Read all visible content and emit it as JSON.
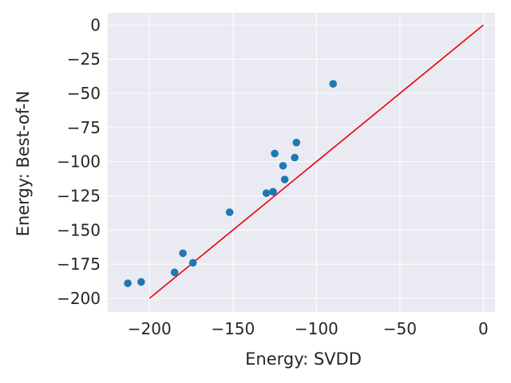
{
  "chart_data": {
    "type": "scatter",
    "title": "",
    "xlabel": "Energy: SVDD",
    "ylabel": "Energy: Best-of-N",
    "xlim": [
      -225,
      7
    ],
    "ylim": [
      -210,
      9
    ],
    "grid": true,
    "x_ticks": [
      -200,
      -150,
      -100,
      -50,
      0
    ],
    "x_tick_labels": [
      "−200",
      "−150",
      "−100",
      "−50",
      "0"
    ],
    "y_ticks": [
      0,
      -25,
      -50,
      -75,
      -100,
      -125,
      -150,
      -175,
      -200
    ],
    "y_tick_labels": [
      "0",
      "−25",
      "−50",
      "−75",
      "−100",
      "−125",
      "−150",
      "−175",
      "−200"
    ],
    "points": [
      {
        "x": -90,
        "y": -43
      },
      {
        "x": -112,
        "y": -86
      },
      {
        "x": -113,
        "y": -97
      },
      {
        "x": -125,
        "y": -94
      },
      {
        "x": -120,
        "y": -103
      },
      {
        "x": -119,
        "y": -113
      },
      {
        "x": -126,
        "y": -122
      },
      {
        "x": -130,
        "y": -123
      },
      {
        "x": -152,
        "y": -137
      },
      {
        "x": -180,
        "y": -167
      },
      {
        "x": -174,
        "y": -174
      },
      {
        "x": -185,
        "y": -181
      },
      {
        "x": -205,
        "y": -188
      },
      {
        "x": -213,
        "y": -189
      }
    ],
    "reference_line": {
      "x": [
        -200,
        0
      ],
      "y": [
        -200,
        0
      ]
    },
    "colors": {
      "background": "#eaeaf2",
      "grid": "#ffffff",
      "points": "#1f77b4",
      "line": "#e8000b"
    }
  }
}
